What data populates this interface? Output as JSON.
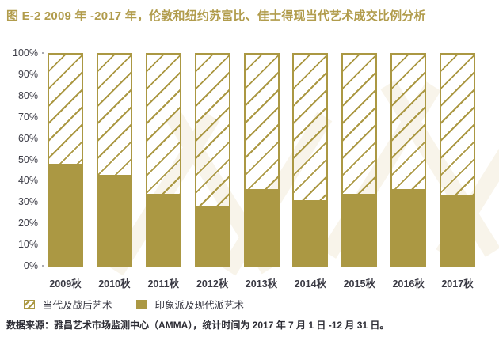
{
  "title": "图 E-2 2009 年 -2017 年，伦敦和纽约苏富比、佳士得现当代艺术成交比例分析",
  "footer": "数据来源：雅昌艺术市场监测中心（AMMA），统计时间为 2017 年 7 月 1 日 -12 月 31 日。",
  "colors": {
    "gold": "#ab9843",
    "title_gold": "#b19c4c",
    "axis_text": "#3d3d47",
    "footer_text": "#2d2d35",
    "watermark": "#f8f4ea"
  },
  "legend": {
    "items": [
      {
        "label": "当代及战后艺术",
        "swatch": "hatched"
      },
      {
        "label": "印象派及现代派艺术",
        "swatch": "solid"
      }
    ]
  },
  "chart_data": {
    "type": "bar",
    "stacked": true,
    "unit": "percent",
    "title": "图 E-2 2009 年 -2017 年，伦敦和纽约苏富比、佳士得现当代艺术成交比例分析",
    "categories": [
      "2009秋",
      "2010秋",
      "2011秋",
      "2012秋",
      "2013秋",
      "2014秋",
      "2015秋",
      "2016秋",
      "2017秋"
    ],
    "series": [
      {
        "name": "当代及战后艺术",
        "style": "hatched",
        "values": [
          52,
          57,
          66,
          72,
          64,
          69,
          66,
          64,
          67
        ]
      },
      {
        "name": "印象派及现代派艺术",
        "style": "solid",
        "values": [
          48,
          43,
          34,
          28,
          36,
          31,
          34,
          36,
          33
        ]
      }
    ],
    "y_ticks": [
      "100%",
      "90%",
      "80%",
      "70%",
      "60%",
      "50%",
      "40%",
      "30%",
      "20%",
      "10%",
      "0%"
    ],
    "ylim": [
      0,
      100
    ],
    "grid": false,
    "legend_position": "bottom-left"
  }
}
